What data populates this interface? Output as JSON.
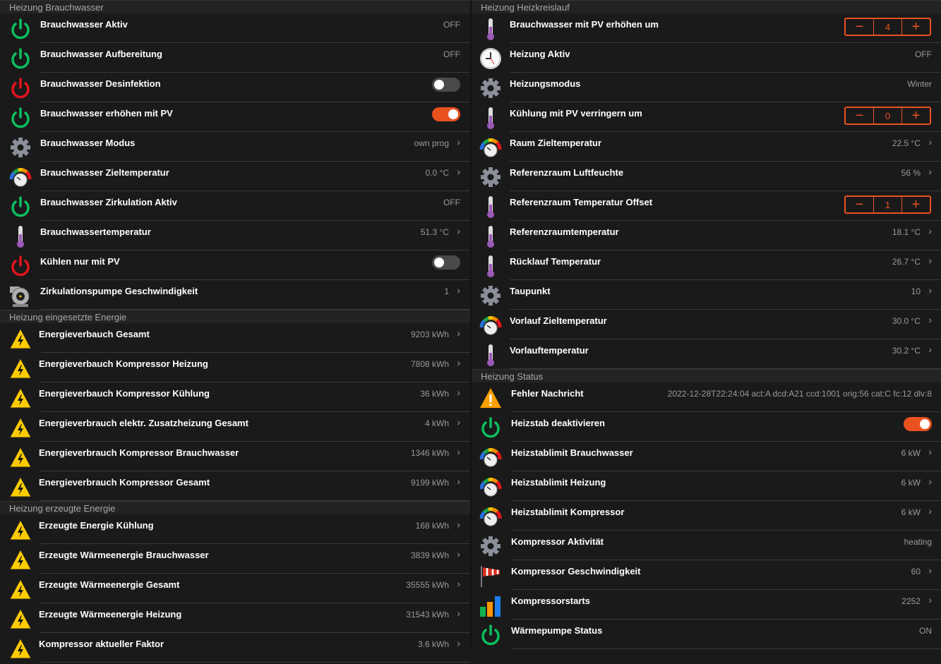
{
  "colors": {
    "accent": "#e9521f",
    "green": "#0bbf5f",
    "red": "#e3141e",
    "gear": "#8a8f99",
    "thermo": "#9b59b6"
  },
  "left": [
    {
      "title": "Heizung Brauchwasser",
      "rows": [
        {
          "label": "Brauchwasser Aktiv",
          "icon": "power-green",
          "value": "OFF"
        },
        {
          "label": "Brauchwasser Aufbereitung",
          "icon": "power-green",
          "value": "OFF"
        },
        {
          "label": "Brauchwasser Desinfektion",
          "icon": "power-red",
          "toggle": false
        },
        {
          "label": "Brauchwasser erhöhen mit PV",
          "icon": "power-green",
          "toggle": true
        },
        {
          "label": "Brauchwasser Modus",
          "icon": "gear",
          "value": "own prog",
          "chevron": true
        },
        {
          "label": "Brauchwasser Zieltemperatur",
          "icon": "gauge",
          "value": "0.0 °C",
          "chevron": true
        },
        {
          "label": "Brauchwasser Zirkulation Aktiv",
          "icon": "power-green",
          "value": "OFF"
        },
        {
          "label": "Brauchwassertemperatur",
          "icon": "thermometer",
          "value": "51.3 °C",
          "chevron": true
        },
        {
          "label": "Kühlen nur mit PV",
          "icon": "power-red",
          "toggle": false
        },
        {
          "label": "Zirkulationspumpe Geschwindigkeit",
          "icon": "pump",
          "value": "1",
          "chevron": true
        }
      ]
    },
    {
      "title": "Heizung eingesetzte Energie",
      "rows": [
        {
          "label": "Energieverbauch Gesamt",
          "icon": "high-voltage",
          "value": "9203 kWh",
          "chevron": true
        },
        {
          "label": "Energieverbauch Kompressor Heizung",
          "icon": "high-voltage",
          "value": "7808 kWh",
          "chevron": true
        },
        {
          "label": "Energieverbauch Kompressor Kühlung",
          "icon": "high-voltage",
          "value": "36 kWh",
          "chevron": true
        },
        {
          "label": "Energieverbrauch elektr. Zusatzheizung Gesamt",
          "icon": "high-voltage",
          "value": "4 kWh",
          "chevron": true
        },
        {
          "label": "Energieverbrauch Kompressor Brauchwasser",
          "icon": "high-voltage",
          "value": "1346 kWh",
          "chevron": true
        },
        {
          "label": "Energieverbrauch Kompressor Gesamt",
          "icon": "high-voltage",
          "value": "9199 kWh",
          "chevron": true
        }
      ]
    },
    {
      "title": "Heizung erzeugte Energie",
      "rows": [
        {
          "label": "Erzeugte Energie Kühlung",
          "icon": "high-voltage",
          "value": "168 kWh",
          "chevron": true
        },
        {
          "label": "Erzeugte Wärmeenergie Brauchwasser",
          "icon": "high-voltage",
          "value": "3839 kWh",
          "chevron": true
        },
        {
          "label": "Erzeugte Wärmeenergie Gesamt",
          "icon": "high-voltage",
          "value": "35555 kWh",
          "chevron": true
        },
        {
          "label": "Erzeugte Wärmeenergie Heizung",
          "icon": "high-voltage",
          "value": "31543 kWh",
          "chevron": true
        },
        {
          "label": "Kompressor aktueller Faktor",
          "icon": "high-voltage",
          "value": "3.6 kWh",
          "chevron": true
        }
      ]
    }
  ],
  "right": [
    {
      "title": "Heizung Heizkreislauf",
      "rows": [
        {
          "label": "Brauchwasser mit PV erhöhen um",
          "icon": "thermometer",
          "stepper": "4"
        },
        {
          "label": "Heizung Aktiv",
          "icon": "clock",
          "value": "OFF"
        },
        {
          "label": "Heizungsmodus",
          "icon": "gear",
          "value": "Winter"
        },
        {
          "label": "Kühlung mit PV verringern um",
          "icon": "thermometer",
          "stepper": "0"
        },
        {
          "label": "Raum Zieltemperatur",
          "icon": "gauge",
          "value": "22.5 °C",
          "chevron": true
        },
        {
          "label": "Referenzraum Luftfeuchte",
          "icon": "gear",
          "value": "56 %",
          "chevron": true
        },
        {
          "label": "Referenzraum Temperatur Offset",
          "icon": "thermometer",
          "stepper": "1"
        },
        {
          "label": "Referenzraumtemperatur",
          "icon": "thermometer",
          "value": "18.1 °C",
          "chevron": true
        },
        {
          "label": "Rücklauf Temperatur",
          "icon": "thermometer",
          "value": "26.7 °C",
          "chevron": true
        },
        {
          "label": "Taupunkt",
          "icon": "gear",
          "value": "10",
          "chevron": true
        },
        {
          "label": "Vorlauf Zieltemperatur",
          "icon": "gauge",
          "value": "30.0 °C",
          "chevron": true
        },
        {
          "label": "Vorlauftemperatur",
          "icon": "thermometer",
          "value": "30.2 °C",
          "chevron": true
        }
      ]
    },
    {
      "title": "Heizung Status",
      "rows": [
        {
          "label": "Fehler Nachricht",
          "icon": "warning",
          "value": "2022-12-28T22:24:04 act:A dcd:A21 ccd:1001 orig:56 cat:C fc:12 dlv:8"
        },
        {
          "label": "Heizstab deaktivieren",
          "icon": "power-green",
          "toggle": true
        },
        {
          "label": "Heizstablimit Brauchwasser",
          "icon": "gauge",
          "value": "6 kW",
          "chevron": true
        },
        {
          "label": "Heizstablimit Heizung",
          "icon": "gauge",
          "value": "6 kW",
          "chevron": true
        },
        {
          "label": "Heizstablimit Kompressor",
          "icon": "gauge",
          "value": "6 kW",
          "chevron": true
        },
        {
          "label": "Kompressor Aktivität",
          "icon": "gear",
          "value": "heating"
        },
        {
          "label": "Kompressor Geschwindigkeit",
          "icon": "windsock",
          "value": "60",
          "chevron": true
        },
        {
          "label": "Kompressorstarts",
          "icon": "bar-chart",
          "value": "2252",
          "chevron": true
        },
        {
          "label": "Wärmepumpe Status",
          "icon": "power-green",
          "value": "ON"
        }
      ]
    }
  ],
  "stepper": {
    "minus": "−",
    "plus": "+"
  },
  "chevron": "›"
}
